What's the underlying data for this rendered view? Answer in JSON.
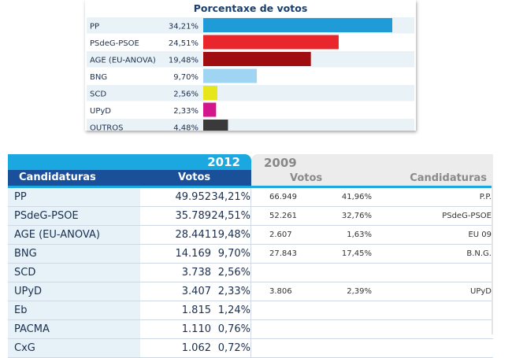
{
  "chart": {
    "title": "Porcentaxe de votos"
  },
  "chart_data": {
    "type": "bar",
    "orientation": "horizontal",
    "title": "Porcentaxe de votos",
    "categories": [
      "PP",
      "PSdeG-PSOE",
      "AGE (EU-ANOVA)",
      "BNG",
      "SCD",
      "UPyD",
      "OUTROS"
    ],
    "labels": [
      "34,21%",
      "24,51%",
      "19,48%",
      "9,70%",
      "2,56%",
      "2,33%",
      "4,48%"
    ],
    "values": [
      34.21,
      24.51,
      19.48,
      9.7,
      2.56,
      2.33,
      4.48
    ],
    "colors": [
      "#1f9bd8",
      "#e8262c",
      "#a00d10",
      "#9fd5f2",
      "#e6e61a",
      "#d4168c",
      "#3a3a3a"
    ],
    "xlim": [
      0,
      35
    ],
    "grid": false,
    "legend": "none"
  },
  "table": {
    "tab_2012": "2012",
    "tab_2009": "2009",
    "headers_2012": {
      "candidaturas": "Candidaturas",
      "votos": "Votos"
    },
    "headers_2009": {
      "votos": "Votos",
      "candidaturas": "Candidaturas"
    },
    "rows": [
      {
        "name": "PP",
        "votes": "49.952",
        "pct": "34,21%",
        "votes_2009": "66.949",
        "pct_2009": "41,96%",
        "cand_2009": "P.P."
      },
      {
        "name": "PSdeG-PSOE",
        "votes": "35.789",
        "pct": "24,51%",
        "votes_2009": "52.261",
        "pct_2009": "32,76%",
        "cand_2009": "PSdeG-PSOE"
      },
      {
        "name": "AGE (EU-ANOVA)",
        "votes": "28.441",
        "pct": "19,48%",
        "votes_2009": "2.607",
        "pct_2009": "1,63%",
        "cand_2009": "EU 09"
      },
      {
        "name": "BNG",
        "votes": "14.169",
        "pct": "9,70%",
        "votes_2009": "27.843",
        "pct_2009": "17,45%",
        "cand_2009": "B.N.G."
      },
      {
        "name": "SCD",
        "votes": "3.738",
        "pct": "2,56%",
        "votes_2009": "",
        "pct_2009": "",
        "cand_2009": ""
      },
      {
        "name": "UPyD",
        "votes": "3.407",
        "pct": "2,33%",
        "votes_2009": "3.806",
        "pct_2009": "2,39%",
        "cand_2009": "UPyD"
      },
      {
        "name": "Eb",
        "votes": "1.815",
        "pct": "1,24%",
        "votes_2009": "",
        "pct_2009": "",
        "cand_2009": ""
      },
      {
        "name": "PACMA",
        "votes": "1.110",
        "pct": "0,76%",
        "votes_2009": "",
        "pct_2009": "",
        "cand_2009": ""
      },
      {
        "name": "CxG",
        "votes": "1.062",
        "pct": "0,72%",
        "votes_2009": "",
        "pct_2009": "",
        "cand_2009": ""
      }
    ]
  }
}
